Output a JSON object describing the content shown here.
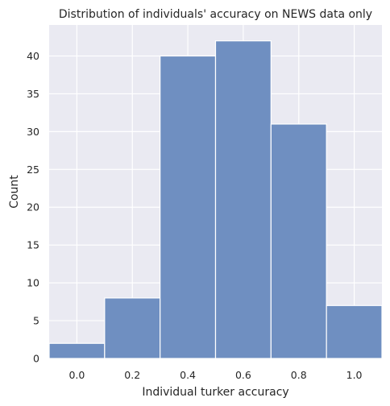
{
  "chart_data": {
    "type": "bar",
    "title": "Distribution of individuals' accuracy on NEWS data only",
    "xlabel": "Individual turker accuracy",
    "ylabel": "Count",
    "bins": [
      {
        "start": -0.1,
        "end": 0.1,
        "value": 2
      },
      {
        "start": 0.1,
        "end": 0.3,
        "value": 8
      },
      {
        "start": 0.3,
        "end": 0.5,
        "value": 40
      },
      {
        "start": 0.5,
        "end": 0.7,
        "value": 42
      },
      {
        "start": 0.7,
        "end": 0.9,
        "value": 31
      },
      {
        "start": 0.9,
        "end": 1.1,
        "value": 7
      }
    ],
    "xlim": [
      -0.1,
      1.1
    ],
    "ylim": [
      0,
      44.1
    ],
    "xticks": [
      0.0,
      0.2,
      0.4,
      0.6,
      0.8,
      1.0
    ],
    "xtick_labels": [
      "0.0",
      "0.2",
      "0.4",
      "0.6",
      "0.8",
      "1.0"
    ],
    "yticks": [
      0,
      5,
      10,
      15,
      20,
      25,
      30,
      35,
      40
    ],
    "ytick_labels": [
      "0",
      "5",
      "10",
      "15",
      "20",
      "25",
      "30",
      "35",
      "40"
    ],
    "grid": true,
    "colors": {
      "bar": "#6f8fc1",
      "bar_edge": "#ffffff",
      "background": "#eaeaf2",
      "grid": "#ffffff"
    }
  }
}
